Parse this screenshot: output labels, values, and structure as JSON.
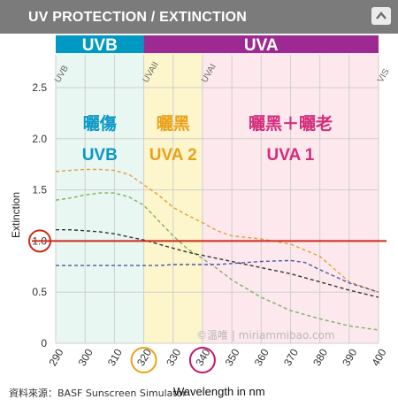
{
  "header": {
    "title": "UV PROTECTION / EXTINCTION"
  },
  "source_note": "資料來源：BASF Sunscreen Simulator",
  "colors": {
    "uvb_bar": "#0099c4",
    "uva_bar": "#9c2a92",
    "uvb_bg": "#e9f7f2",
    "uva2_bg": "#fdf5cc",
    "uva1_bg": "#fde8ee",
    "threshold": "#cc2a1a",
    "grid": "#cfcfcf"
  },
  "chart_data": {
    "type": "line",
    "xlabel": "Wavelength in nm",
    "ylabel": "Extinction",
    "xlim": [
      290,
      400
    ],
    "ylim": [
      0,
      2.5
    ],
    "x_ticks": [
      "290",
      "300",
      "310",
      "320",
      "330",
      "340",
      "350",
      "360",
      "370",
      "380",
      "390",
      "400"
    ],
    "y_ticks": [
      "0",
      "0.5",
      "1.0",
      "1.5",
      "2.0",
      "2.5"
    ],
    "circled_x_ticks": [
      {
        "label": "320",
        "color": "#e8a21a"
      },
      {
        "label": "340",
        "color": "#c4156a"
      }
    ],
    "circled_y_tick": {
      "label": "1.0",
      "color": "#cc2a1a"
    },
    "bands": [
      {
        "name": "UVB",
        "start": 290,
        "end": 320,
        "bar_color": "#0099c4"
      },
      {
        "name": "UVA",
        "start": 320,
        "end": 400,
        "bar_color": "#9c2a92"
      }
    ],
    "regions": [
      {
        "start": 290,
        "end": 320,
        "bg": "#e9f7f2",
        "chinese": "曬傷",
        "label": "UVB",
        "color": "#0a98c6"
      },
      {
        "start": 320,
        "end": 340,
        "bg": "#fdf5cc",
        "chinese": "曬黑",
        "label": "UVA 2",
        "color": "#e8a21a"
      },
      {
        "start": 340,
        "end": 400,
        "bg": "#fde8ee",
        "chinese": "曬黑＋曬老",
        "label": "UVA 1",
        "color": "#d22d7b"
      }
    ],
    "boundary_labels": [
      {
        "label": "UVB",
        "x": 290
      },
      {
        "label": "UVAII",
        "x": 320
      },
      {
        "label": "UVAI",
        "x": 340
      },
      {
        "label": "VIS",
        "x": 400
      }
    ],
    "threshold": {
      "y": 1.0,
      "color": "#cc2a1a"
    },
    "watermark": "©溫唯 | miriammibao.com",
    "series": [
      {
        "color": "#e0a040",
        "x": [
          290,
          295,
          300,
          305,
          310,
          315,
          320,
          325,
          330,
          335,
          340,
          345,
          350,
          360,
          370,
          380,
          390,
          400
        ],
        "y": [
          1.68,
          1.69,
          1.7,
          1.7,
          1.69,
          1.65,
          1.55,
          1.45,
          1.33,
          1.25,
          1.18,
          1.1,
          1.05,
          1.02,
          0.97,
          0.85,
          0.6,
          0.5
        ]
      },
      {
        "color": "#7fb060",
        "x": [
          290,
          295,
          300,
          305,
          310,
          315,
          320,
          325,
          330,
          335,
          340,
          345,
          350,
          360,
          370,
          380,
          390,
          400
        ],
        "y": [
          1.4,
          1.42,
          1.45,
          1.47,
          1.47,
          1.43,
          1.35,
          1.2,
          1.05,
          0.92,
          0.83,
          0.73,
          0.62,
          0.45,
          0.32,
          0.24,
          0.17,
          0.13
        ]
      },
      {
        "color": "#333333",
        "x": [
          290,
          295,
          300,
          305,
          310,
          315,
          320,
          325,
          330,
          335,
          340,
          345,
          350,
          360,
          370,
          380,
          390,
          400
        ],
        "y": [
          1.11,
          1.11,
          1.1,
          1.09,
          1.07,
          1.04,
          1.01,
          0.97,
          0.93,
          0.89,
          0.86,
          0.83,
          0.8,
          0.74,
          0.68,
          0.6,
          0.52,
          0.45
        ]
      },
      {
        "color": "#4a5aa0",
        "x": [
          290,
          295,
          300,
          305,
          310,
          315,
          320,
          325,
          330,
          335,
          340,
          345,
          350,
          360,
          370,
          375,
          380,
          390,
          400
        ],
        "y": [
          0.76,
          0.76,
          0.76,
          0.76,
          0.76,
          0.76,
          0.76,
          0.76,
          0.77,
          0.77,
          0.77,
          0.77,
          0.78,
          0.8,
          0.81,
          0.79,
          0.72,
          0.59,
          0.5
        ]
      }
    ]
  }
}
